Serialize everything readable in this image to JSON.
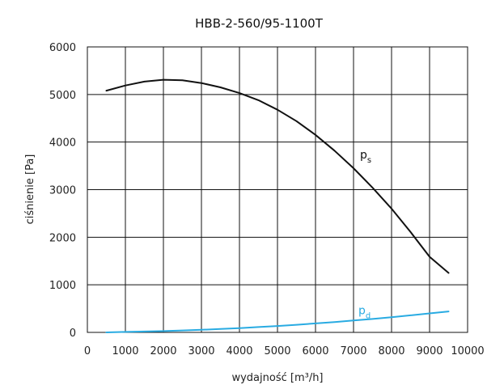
{
  "chart_data": {
    "type": "line",
    "title": "HBB-2-560/95-1100T",
    "xlabel": "wydajność [m³/h]",
    "ylabel": "ciśnienie [Pa]",
    "xlim": [
      0,
      10000
    ],
    "ylim": [
      0,
      6000
    ],
    "x_ticks": [
      "0",
      "1000",
      "2000",
      "3000",
      "4000",
      "5000",
      "6000",
      "7000",
      "8000",
      "9000",
      "10000"
    ],
    "y_ticks": [
      "0",
      "1000",
      "2000",
      "3000",
      "4000",
      "5000",
      "6000"
    ],
    "grid": true,
    "legend": "inline labels on curves",
    "series": [
      {
        "name": "p",
        "subscript": "s",
        "color": "#111111",
        "x": [
          500,
          1000,
          1500,
          2000,
          2500,
          3000,
          3500,
          4000,
          4500,
          5000,
          5500,
          6000,
          6500,
          7000,
          7500,
          8000,
          8500,
          9000,
          9500
        ],
        "y": [
          5080,
          5190,
          5270,
          5310,
          5300,
          5240,
          5150,
          5030,
          4880,
          4680,
          4440,
          4150,
          3820,
          3450,
          3040,
          2600,
          2110,
          1590,
          1250
        ]
      },
      {
        "name": "p",
        "subscript": "d",
        "color": "#29abe2",
        "x": [
          500,
          1000,
          1500,
          2000,
          2500,
          3000,
          3500,
          4000,
          4500,
          5000,
          5500,
          6000,
          6500,
          7000,
          7500,
          8000,
          8500,
          9000,
          9500
        ],
        "y": [
          0,
          10,
          18,
          28,
          40,
          55,
          72,
          90,
          112,
          135,
          160,
          188,
          218,
          250,
          283,
          320,
          358,
          400,
          440
        ]
      }
    ]
  }
}
